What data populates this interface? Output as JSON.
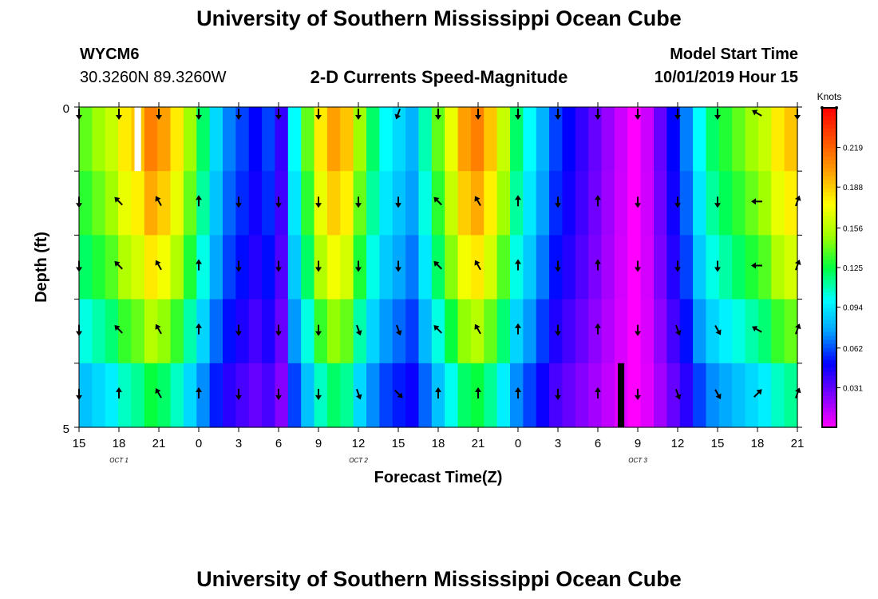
{
  "page": {
    "title_top": "University of Southern Mississippi Ocean Cube",
    "title_bottom": "University of Southern Mississippi Ocean Cube",
    "station_id": "WYCM6",
    "station_coords": "30.3260N 89.3260W",
    "plot_title": "2-D Currents Speed-Magnitude",
    "model_start_label": "Model Start Time",
    "model_start_value": "10/01/2019 Hour 15"
  },
  "chart_data": {
    "type": "heatmap",
    "title": "2-D Currents Speed-Magnitude",
    "xlabel": "Forecast Time(Z)",
    "ylabel": "Depth (ft)",
    "x_tick_labels": [
      "15",
      "18",
      "21",
      "0",
      "3",
      "6",
      "9",
      "12",
      "15",
      "18",
      "21",
      "0",
      "3",
      "6",
      "9",
      "12",
      "15",
      "18",
      "21"
    ],
    "date_labels": [
      {
        "label": "OCT 1",
        "tick_index": 1
      },
      {
        "label": "OCT 2",
        "tick_index": 7
      },
      {
        "label": "OCT 3",
        "tick_index": 14
      }
    ],
    "y_tick_labels": [
      "0",
      "5"
    ],
    "y_range": [
      0,
      5
    ],
    "x_range_hours": [
      0,
      54
    ],
    "depth_rows": 5,
    "colorbar": {
      "unit": "Knots",
      "ticks": [
        0.031,
        0.062,
        0.094,
        0.125,
        0.156,
        0.188,
        0.219
      ],
      "range": [
        0.0,
        0.25
      ],
      "colors": [
        "#ff00ff",
        "#8000ff",
        "#0000ff",
        "#00a0ff",
        "#00ffff",
        "#00ff40",
        "#a0ff00",
        "#ffff00",
        "#ffa000",
        "#ff5000",
        "#ff0000"
      ]
    },
    "speed_by_hour_knots": [
      0.14,
      0.15,
      0.16,
      0.18,
      0.19,
      0.21,
      0.2,
      0.18,
      0.15,
      0.12,
      0.09,
      0.07,
      0.06,
      0.05,
      0.06,
      0.04,
      0.1,
      0.14,
      0.18,
      0.2,
      0.19,
      0.15,
      0.12,
      0.1,
      0.09,
      0.08,
      0.11,
      0.14,
      0.17,
      0.2,
      0.21,
      0.19,
      0.16,
      0.12,
      0.1,
      0.08,
      0.06,
      0.05,
      0.04,
      0.03,
      0.02,
      0.01,
      0.0,
      0.01,
      0.03,
      0.05,
      0.07,
      0.1,
      0.12,
      0.13,
      0.14,
      0.15,
      0.16,
      0.18,
      0.19
    ],
    "depth_speed_factors": [
      1.0,
      0.94,
      0.86,
      0.74,
      0.6
    ],
    "missing_cells": [
      {
        "hour": 4,
        "depth_row": 0,
        "value": "no data (white)"
      },
      {
        "hour": 41,
        "depth_row": 4,
        "value": "no data (black)"
      }
    ],
    "arrow_directions_deg_by_tick": [
      [
        180,
        180,
        180,
        180,
        180
      ],
      [
        180,
        315,
        315,
        315,
        0
      ],
      [
        180,
        330,
        330,
        330,
        330
      ],
      [
        180,
        0,
        0,
        0,
        0
      ],
      [
        180,
        180,
        180,
        180,
        180
      ],
      [
        180,
        180,
        180,
        180,
        180
      ],
      [
        180,
        180,
        180,
        180,
        180
      ],
      [
        180,
        180,
        180,
        160,
        160
      ],
      [
        200,
        180,
        180,
        160,
        135
      ],
      [
        180,
        315,
        315,
        315,
        0
      ],
      [
        180,
        330,
        330,
        330,
        0
      ],
      [
        180,
        0,
        0,
        0,
        0
      ],
      [
        180,
        180,
        180,
        180,
        180
      ],
      [
        180,
        0,
        0,
        0,
        0
      ],
      [
        180,
        180,
        180,
        180,
        180
      ],
      [
        180,
        180,
        180,
        160,
        160
      ],
      [
        180,
        180,
        180,
        150,
        150
      ],
      [
        300,
        270,
        270,
        300,
        45
      ],
      [
        180,
        20,
        20,
        20,
        20
      ]
    ],
    "legend": "colorbar right"
  }
}
